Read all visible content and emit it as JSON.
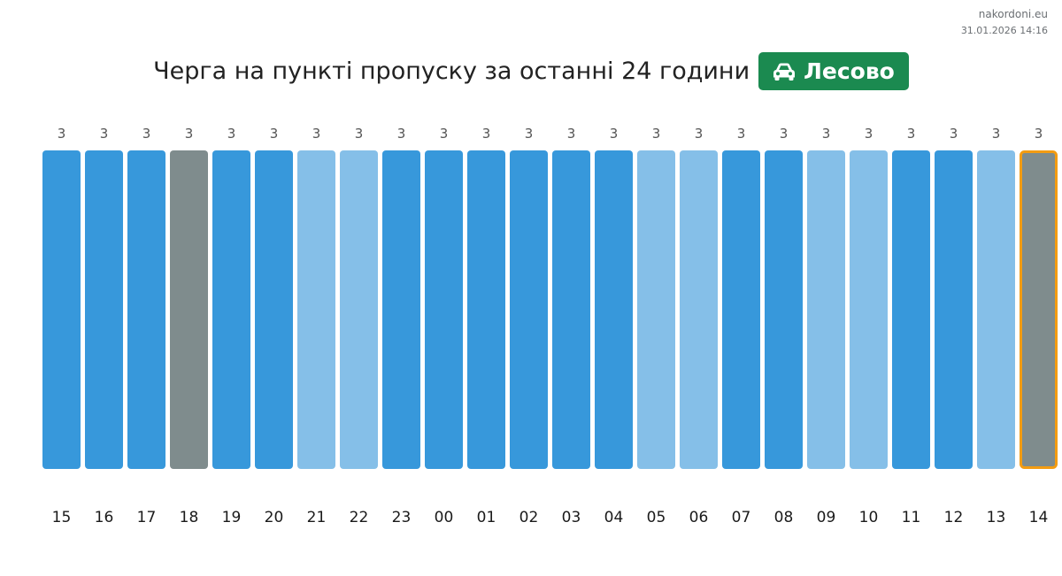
{
  "header": {
    "site": "nakordoni.eu",
    "timestamp": "31.01.2026 14:16",
    "title": "Черга на пункті пропуску за останні 24 години",
    "checkpoint_name": "Лесово",
    "checkpoint_icon": "car-icon"
  },
  "colors": {
    "dark_blue": "#3798db",
    "light_blue": "#85bfe8",
    "gray": "#7f8c8d",
    "current_outline": "#f39c12",
    "badge": "#1b8a50"
  },
  "chart_data": {
    "type": "bar",
    "categories": [
      "15",
      "16",
      "17",
      "18",
      "19",
      "20",
      "21",
      "22",
      "23",
      "00",
      "01",
      "02",
      "03",
      "04",
      "05",
      "06",
      "07",
      "08",
      "09",
      "10",
      "11",
      "12",
      "13",
      "14"
    ],
    "values": [
      3,
      3,
      3,
      3,
      3,
      3,
      3,
      3,
      3,
      3,
      3,
      3,
      3,
      3,
      3,
      3,
      3,
      3,
      3,
      3,
      3,
      3,
      3,
      3
    ],
    "bar_colors": [
      "dark_blue",
      "dark_blue",
      "dark_blue",
      "gray",
      "dark_blue",
      "dark_blue",
      "light_blue",
      "light_blue",
      "dark_blue",
      "dark_blue",
      "dark_blue",
      "dark_blue",
      "dark_blue",
      "dark_blue",
      "light_blue",
      "light_blue",
      "dark_blue",
      "dark_blue",
      "light_blue",
      "light_blue",
      "dark_blue",
      "dark_blue",
      "light_blue",
      "gray"
    ],
    "highlighted_category": "14",
    "ylim": [
      0,
      3
    ],
    "grid": false,
    "title": "Черга на пункті пропуску за останні 24 години"
  }
}
